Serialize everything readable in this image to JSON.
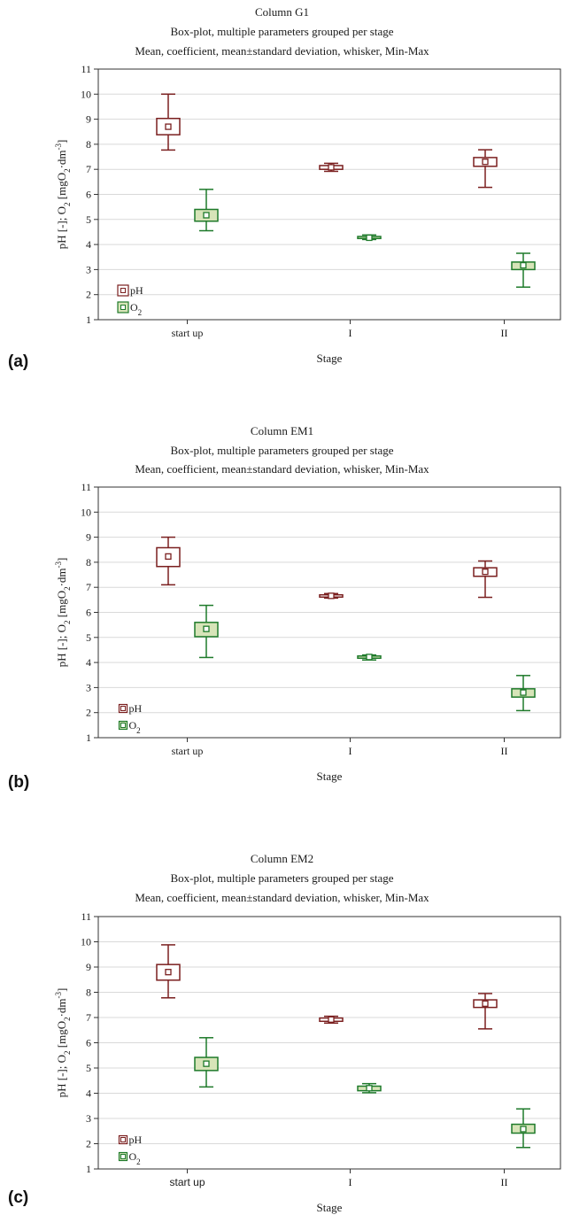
{
  "figure": {
    "panels": [
      {
        "panel_label": "(a)",
        "title_lines": [
          "Column G1",
          "Box-plot, multiple parameters grouped per stage",
          "Mean, coefficient, mean±standard deviation, whisker, Min-Max"
        ],
        "xlabel": "Stage",
        "ylabel_parts": [
          "pH [-]; O",
          "2",
          " [mgO",
          "2",
          "·dm",
          "-3",
          "]"
        ],
        "legend": [
          {
            "label": "pH",
            "sub": ""
          },
          {
            "label": "O",
            "sub": "2"
          }
        ]
      },
      {
        "panel_label": "(b)",
        "title_lines": [
          "Column EM1",
          "Box-plot, multiple parameters grouped per stage",
          "Mean, coefficient, mean±standard deviation, whisker, Min-Max"
        ],
        "xlabel": "Stage",
        "ylabel_parts": [
          "pH [-]; O",
          "2",
          " [mgO",
          "2",
          "·dm",
          "-3",
          "]"
        ],
        "legend": [
          {
            "label": "pH",
            "sub": ""
          },
          {
            "label": "O",
            "sub": "2"
          }
        ]
      },
      {
        "panel_label": "(c)",
        "title_lines": [
          "Column EM2",
          "Box-plot, multiple parameters grouped per stage",
          "Mean, coefficient, mean±standard deviation, whisker, Min-Max"
        ],
        "xlabel": "Stage",
        "ylabel_parts": [
          "pH [-]; O",
          "2",
          " [mgO",
          "2",
          "·dm",
          "-3",
          "]"
        ],
        "legend": [
          {
            "label": "pH",
            "sub": ""
          },
          {
            "label": "O",
            "sub": "2"
          }
        ]
      }
    ]
  },
  "chart_data": [
    {
      "type": "box",
      "title": "Column G1",
      "categories": [
        "start up",
        "I",
        "II"
      ],
      "xlabel": "Stage",
      "ylabel": "pH [-]; O2 [mgO2·dm-3]",
      "ylim": [
        1,
        11
      ],
      "yticks": [
        1,
        2,
        3,
        4,
        5,
        6,
        7,
        8,
        9,
        10,
        11
      ],
      "grid": true,
      "legend_position": "bottom-left",
      "series": [
        {
          "name": "pH",
          "color": "#7a1f1f",
          "fill": "#ffffff",
          "mean": [
            8.7,
            7.08,
            7.3
          ],
          "box_low": [
            8.38,
            7.0,
            7.12
          ],
          "box_high": [
            9.03,
            7.15,
            7.47
          ],
          "min": [
            7.77,
            6.92,
            6.28
          ],
          "max": [
            10.0,
            7.24,
            7.78
          ]
        },
        {
          "name": "O2",
          "color": "#1e7a2a",
          "fill": "#d7e4b8",
          "mean": [
            5.17,
            4.27,
            3.17
          ],
          "box_low": [
            4.93,
            4.24,
            3.0
          ],
          "box_high": [
            5.4,
            4.32,
            3.3
          ],
          "min": [
            4.55,
            4.2,
            2.3
          ],
          "max": [
            6.2,
            4.38,
            3.65
          ]
        }
      ]
    },
    {
      "type": "box",
      "title": "Column EM1",
      "categories": [
        "start up",
        "I",
        "II"
      ],
      "xlabel": "Stage",
      "ylabel": "pH [-]; O2 [mgO2·dm-3]",
      "ylim": [
        1,
        11
      ],
      "yticks": [
        1,
        2,
        3,
        4,
        5,
        6,
        7,
        8,
        9,
        10,
        11
      ],
      "grid": true,
      "legend_position": "bottom-left",
      "series": [
        {
          "name": "pH",
          "color": "#7a1f1f",
          "fill": "#ffffff",
          "mean": [
            8.23,
            6.66,
            7.62
          ],
          "box_low": [
            7.83,
            6.61,
            7.44
          ],
          "box_high": [
            8.58,
            6.7,
            7.78
          ],
          "min": [
            7.1,
            6.57,
            6.6
          ],
          "max": [
            9.0,
            6.75,
            8.05
          ]
        },
        {
          "name": "O2",
          "color": "#1e7a2a",
          "fill": "#d7e4b8",
          "mean": [
            5.34,
            4.22,
            2.8
          ],
          "box_low": [
            5.03,
            4.17,
            2.62
          ],
          "box_high": [
            5.6,
            4.26,
            2.95
          ],
          "min": [
            4.2,
            4.1,
            2.08
          ],
          "max": [
            6.28,
            4.3,
            3.48
          ]
        }
      ]
    },
    {
      "type": "box",
      "title": "Column EM2",
      "categories": [
        "start up",
        "I",
        "II"
      ],
      "xlabel": "Stage",
      "ylabel": "pH [-]; O2 [mgO2·dm-3]",
      "ylim": [
        1,
        11
      ],
      "yticks": [
        1,
        2,
        3,
        4,
        5,
        6,
        7,
        8,
        9,
        10,
        11
      ],
      "grid": true,
      "legend_position": "bottom-left",
      "series": [
        {
          "name": "pH",
          "color": "#7a1f1f",
          "fill": "#ffffff",
          "mean": [
            8.8,
            6.92,
            7.55
          ],
          "box_low": [
            8.48,
            6.85,
            7.4
          ],
          "box_high": [
            9.1,
            6.98,
            7.7
          ],
          "min": [
            7.78,
            6.78,
            6.55
          ],
          "max": [
            9.88,
            7.05,
            7.95
          ]
        },
        {
          "name": "O2",
          "color": "#1e7a2a",
          "fill": "#d7e4b8",
          "mean": [
            5.17,
            4.2,
            2.58
          ],
          "box_low": [
            4.9,
            4.1,
            2.42
          ],
          "box_high": [
            5.42,
            4.28,
            2.77
          ],
          "min": [
            4.25,
            4.02,
            1.85
          ],
          "max": [
            6.2,
            4.38,
            3.38
          ]
        }
      ]
    }
  ]
}
